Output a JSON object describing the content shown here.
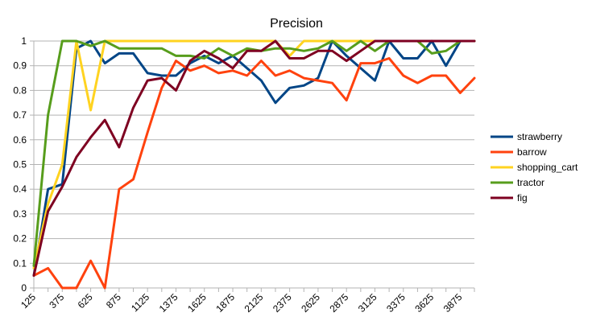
{
  "chart_data": {
    "type": "line",
    "title": "Precision",
    "xlabel": "",
    "ylabel": "",
    "ylim": [
      0,
      1
    ],
    "yticks": [
      "0",
      "0.1",
      "0.2",
      "0.3",
      "0.4",
      "0.5",
      "0.6",
      "0.7",
      "0.8",
      "0.9",
      "1"
    ],
    "x": [
      125,
      250,
      375,
      500,
      625,
      750,
      875,
      1000,
      1125,
      1250,
      1375,
      1500,
      1625,
      1750,
      1875,
      2000,
      2125,
      2250,
      2375,
      2500,
      2625,
      2750,
      2875,
      3000,
      3125,
      3250,
      3375,
      3500,
      3625,
      3750,
      3875,
      4000
    ],
    "xtick_labels": [
      "125",
      "375",
      "625",
      "875",
      "1125",
      "1375",
      "1625",
      "1875",
      "2125",
      "2375",
      "2625",
      "2875",
      "3125",
      "3375",
      "3625",
      "3875"
    ],
    "grid": "horizontal",
    "legend_position": "right",
    "series": [
      {
        "name": "strawberry",
        "color": "#004586",
        "values": [
          0.05,
          0.4,
          0.42,
          0.97,
          1.0,
          0.91,
          0.95,
          0.95,
          0.87,
          0.86,
          0.86,
          0.91,
          0.94,
          0.91,
          0.94,
          0.89,
          0.84,
          0.75,
          0.81,
          0.82,
          0.85,
          1.0,
          0.94,
          0.89,
          0.84,
          1.0,
          0.93,
          0.93,
          1.0,
          0.9,
          1.0,
          1.0
        ]
      },
      {
        "name": "barrow",
        "color": "#ff420e",
        "values": [
          0.05,
          0.08,
          0.0,
          0.0,
          0.11,
          0.0,
          0.4,
          0.44,
          0.63,
          0.81,
          0.92,
          0.88,
          0.9,
          0.87,
          0.88,
          0.86,
          0.92,
          0.86,
          0.88,
          0.85,
          0.84,
          0.83,
          0.76,
          0.91,
          0.91,
          0.93,
          0.86,
          0.83,
          0.86,
          0.86,
          0.79,
          0.85
        ]
      },
      {
        "name": "shopping_cart",
        "color": "#ffd320",
        "values": [
          0.08,
          0.34,
          0.5,
          1.0,
          0.72,
          1.0,
          1.0,
          1.0,
          1.0,
          1.0,
          1.0,
          1.0,
          1.0,
          1.0,
          1.0,
          1.0,
          1.0,
          1.0,
          0.94,
          1.0,
          1.0,
          1.0,
          1.0,
          1.0,
          1.0,
          1.0,
          1.0,
          1.0,
          1.0,
          1.0,
          1.0,
          1.0
        ]
      },
      {
        "name": "tractor",
        "color": "#579d1c",
        "values": [
          0.09,
          0.7,
          1.0,
          1.0,
          0.98,
          1.0,
          0.97,
          0.97,
          0.97,
          0.97,
          0.94,
          0.94,
          0.93,
          0.97,
          0.94,
          0.97,
          0.96,
          0.97,
          0.97,
          0.96,
          0.97,
          1.0,
          0.96,
          1.0,
          0.96,
          1.0,
          1.0,
          1.0,
          0.95,
          0.96,
          1.0,
          1.0
        ]
      },
      {
        "name": "fig",
        "color": "#7e0021",
        "values": [
          0.05,
          0.31,
          0.41,
          0.53,
          0.61,
          0.68,
          0.57,
          0.73,
          0.84,
          0.85,
          0.8,
          0.92,
          0.96,
          0.93,
          0.89,
          0.96,
          0.96,
          1.0,
          0.93,
          0.93,
          0.96,
          0.96,
          0.92,
          0.96,
          1.0,
          1.0,
          1.0,
          1.0,
          1.0,
          1.0,
          1.0,
          1.0
        ]
      }
    ]
  }
}
